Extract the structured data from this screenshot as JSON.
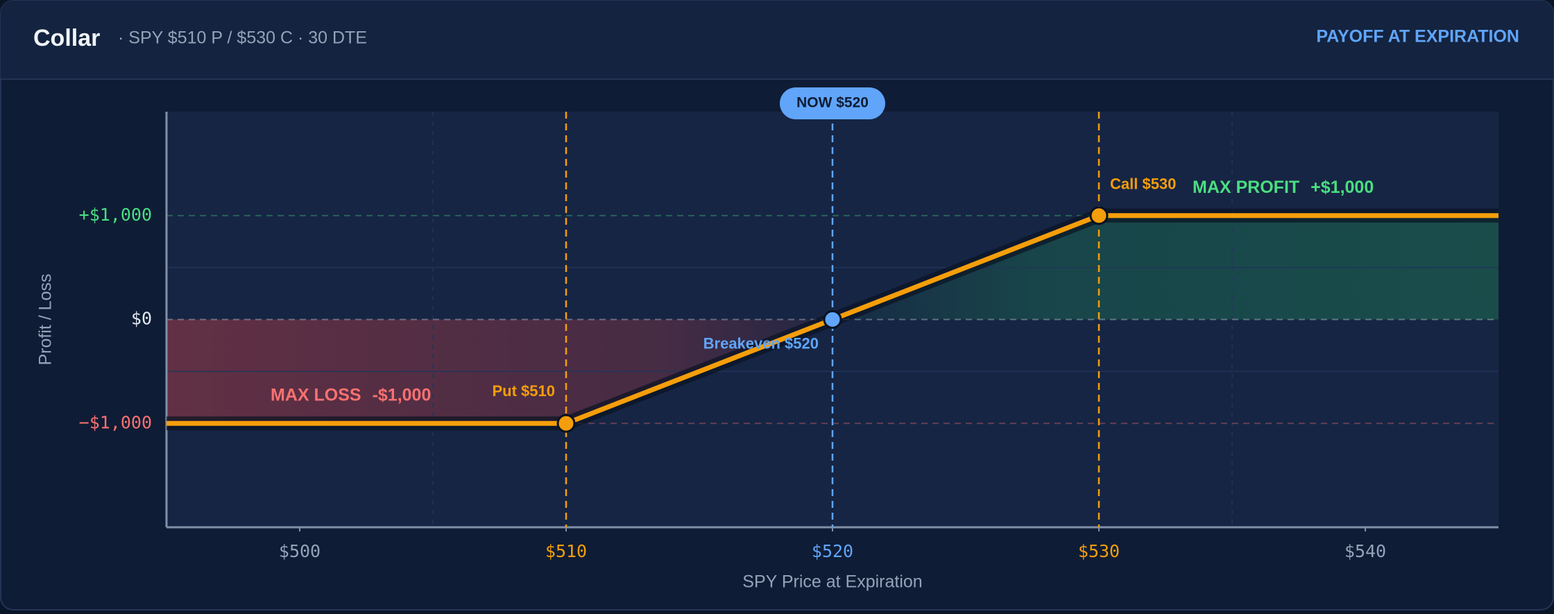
{
  "header": {
    "title": "Collar",
    "subtitle": "· SPY $510 P / $530 C · 30 DTE",
    "mode": "PAYOFF AT EXPIRATION"
  },
  "chart_data": {
    "type": "line",
    "x_label": "SPY Price at Expiration",
    "y_label": "Profit / Loss",
    "x": [
      495,
      510,
      520,
      530,
      545
    ],
    "series": [
      {
        "color": "#f59e0b",
        "values": [
          -1000,
          -1000,
          0,
          1000,
          1000
        ]
      }
    ],
    "xlim": [
      495,
      545
    ],
    "xticks": [
      {
        "value": 500,
        "label": "$500"
      },
      {
        "value": 510,
        "label": "$510"
      },
      {
        "value": 520,
        "label": "$520"
      },
      {
        "value": 530,
        "label": "$530"
      },
      {
        "value": 540,
        "label": "$540"
      }
    ],
    "xtick_colors": [
      "#94a3b8",
      "#f59e0b",
      "#60a5fa",
      "#f59e0b",
      "#94a3b8"
    ],
    "ylim": [
      -2000,
      2000
    ],
    "yticks": [
      {
        "value": -1000,
        "label": "−$1,000"
      },
      {
        "value": 0,
        "label": "$0"
      },
      {
        "value": 1000,
        "label": "+$1,000"
      }
    ],
    "ytick_colors": [
      "#f87171",
      "#e2e8f0",
      "#4ade80"
    ],
    "minor_xgrid": [
      505,
      535
    ],
    "minor_ygrid": [
      -500,
      500
    ],
    "reference_lines": [
      {
        "x": 510,
        "label": "Put $510",
        "color": "#f59e0b"
      },
      {
        "x": 520,
        "label": "Breakeven $520",
        "color": "#60a5fa",
        "badge": "NOW $520"
      },
      {
        "x": 530,
        "label": "Call $530",
        "color": "#f59e0b"
      }
    ],
    "annotations": [
      {
        "text": "MAX LOSS",
        "value": -1000,
        "value_label": "-$1,000",
        "color": "#f87171"
      },
      {
        "text": "MAX PROFIT",
        "value": 1000,
        "value_label": "+$1,000",
        "color": "#4ade80"
      }
    ]
  }
}
